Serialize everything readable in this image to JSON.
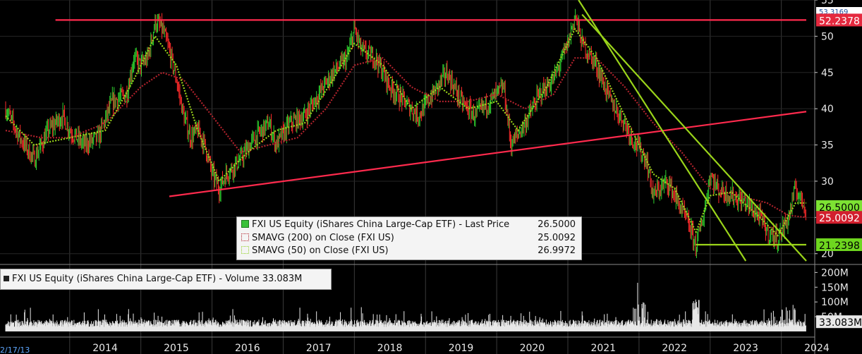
{
  "chart_data": {
    "type": "line",
    "x_ticks": [
      "2014",
      "2015",
      "2016",
      "2017",
      "2018",
      "2019",
      "2020",
      "2021",
      "2022",
      "2023",
      "2024"
    ],
    "start_date_label": "2/17/13",
    "price_axis": {
      "ticks": [
        20,
        25,
        30,
        35,
        40,
        45,
        50,
        55
      ],
      "range": [
        19,
        55
      ]
    },
    "volume_axis": {
      "ticks": [
        "50M",
        "100M",
        "150M",
        "200M"
      ]
    },
    "legend": {
      "price": {
        "label": "FXI US Equity (iShares China Large-Cap ETF) - Last Price",
        "value": "26.5000"
      },
      "sma200": {
        "label": "SMAVG (200)  on Close (FXI US)",
        "value": "25.0092"
      },
      "sma50": {
        "label": "SMAVG (50)  on Close (FXI US)",
        "value": "26.9972"
      },
      "volume": {
        "label": "FXI US Equity (iShares China Large-Cap ETF) - Volume 33.083M"
      }
    },
    "tags": {
      "high": "53.3169",
      "resistance": "52.2378",
      "last": "26.5000",
      "sma200": "25.0092",
      "support": "21.2398",
      "volume": "33.083M"
    },
    "price_series": [
      [
        2013.1,
        40
      ],
      [
        2013.3,
        36
      ],
      [
        2013.5,
        33
      ],
      [
        2013.7,
        37
      ],
      [
        2013.9,
        39
      ],
      [
        2014.0,
        37
      ],
      [
        2014.2,
        35
      ],
      [
        2014.4,
        36
      ],
      [
        2014.6,
        41
      ],
      [
        2014.8,
        42
      ],
      [
        2014.9,
        47
      ],
      [
        2015.0,
        46
      ],
      [
        2015.1,
        47
      ],
      [
        2015.2,
        52
      ],
      [
        2015.3,
        51
      ],
      [
        2015.4,
        48
      ],
      [
        2015.5,
        44
      ],
      [
        2015.6,
        39
      ],
      [
        2015.7,
        36
      ],
      [
        2015.8,
        37
      ],
      [
        2015.9,
        35
      ],
      [
        2016.0,
        31
      ],
      [
        2016.1,
        29
      ],
      [
        2016.2,
        31
      ],
      [
        2016.4,
        33
      ],
      [
        2016.6,
        36
      ],
      [
        2016.8,
        38
      ],
      [
        2016.9,
        35
      ],
      [
        2017.1,
        38
      ],
      [
        2017.3,
        39
      ],
      [
        2017.5,
        42
      ],
      [
        2017.7,
        45
      ],
      [
        2017.9,
        47
      ],
      [
        2018.0,
        51
      ],
      [
        2018.1,
        48
      ],
      [
        2018.3,
        47
      ],
      [
        2018.5,
        43
      ],
      [
        2018.7,
        41
      ],
      [
        2018.9,
        39
      ],
      [
        2019.1,
        42
      ],
      [
        2019.3,
        45
      ],
      [
        2019.5,
        41
      ],
      [
        2019.7,
        39
      ],
      [
        2019.9,
        41
      ],
      [
        2020.1,
        43
      ],
      [
        2020.2,
        35
      ],
      [
        2020.4,
        38
      ],
      [
        2020.6,
        42
      ],
      [
        2020.8,
        44
      ],
      [
        2021.0,
        49
      ],
      [
        2021.1,
        53
      ],
      [
        2021.2,
        49
      ],
      [
        2021.4,
        46
      ],
      [
        2021.6,
        41
      ],
      [
        2021.8,
        38
      ],
      [
        2021.9,
        36
      ],
      [
        2022.1,
        33
      ],
      [
        2022.2,
        28
      ],
      [
        2022.4,
        30
      ],
      [
        2022.5,
        28
      ],
      [
        2022.7,
        24
      ],
      [
        2022.8,
        21
      ],
      [
        2022.9,
        25
      ],
      [
        2023.0,
        31
      ],
      [
        2023.1,
        29
      ],
      [
        2023.3,
        28
      ],
      [
        2023.5,
        27
      ],
      [
        2023.7,
        25
      ],
      [
        2023.8,
        23
      ],
      [
        2023.95,
        22
      ],
      [
        2024.1,
        25
      ],
      [
        2024.2,
        29
      ],
      [
        2024.3,
        27
      ],
      [
        2024.35,
        26.5
      ]
    ],
    "sma200_series": [
      [
        2013.1,
        37
      ],
      [
        2013.6,
        36
      ],
      [
        2014.0,
        36
      ],
      [
        2014.5,
        38
      ],
      [
        2015.0,
        43
      ],
      [
        2015.3,
        45
      ],
      [
        2015.6,
        44
      ],
      [
        2016.0,
        39
      ],
      [
        2016.4,
        34
      ],
      [
        2016.8,
        35
      ],
      [
        2017.2,
        36
      ],
      [
        2017.6,
        40
      ],
      [
        2018.0,
        46
      ],
      [
        2018.4,
        47
      ],
      [
        2018.8,
        43
      ],
      [
        2019.2,
        41
      ],
      [
        2019.6,
        41
      ],
      [
        2020.0,
        42
      ],
      [
        2020.4,
        40
      ],
      [
        2020.8,
        42
      ],
      [
        2021.1,
        47
      ],
      [
        2021.4,
        47
      ],
      [
        2021.8,
        43
      ],
      [
        2022.2,
        38
      ],
      [
        2022.6,
        34
      ],
      [
        2023.0,
        29
      ],
      [
        2023.4,
        28
      ],
      [
        2023.8,
        27
      ],
      [
        2024.1,
        25.3
      ],
      [
        2024.35,
        25.0
      ]
    ],
    "sma50_series": [
      [
        2013.1,
        39
      ],
      [
        2013.5,
        35
      ],
      [
        2014.0,
        36
      ],
      [
        2014.5,
        37
      ],
      [
        2014.9,
        44
      ],
      [
        2015.2,
        50
      ],
      [
        2015.5,
        46
      ],
      [
        2015.8,
        37
      ],
      [
        2016.1,
        30
      ],
      [
        2016.5,
        34
      ],
      [
        2016.9,
        37
      ],
      [
        2017.3,
        38
      ],
      [
        2017.7,
        44
      ],
      [
        2018.0,
        49
      ],
      [
        2018.4,
        46
      ],
      [
        2018.8,
        40
      ],
      [
        2019.2,
        43
      ],
      [
        2019.6,
        40
      ],
      [
        2020.0,
        41
      ],
      [
        2020.3,
        37
      ],
      [
        2020.7,
        43
      ],
      [
        2021.1,
        51
      ],
      [
        2021.4,
        47
      ],
      [
        2021.8,
        39
      ],
      [
        2022.2,
        31
      ],
      [
        2022.5,
        29
      ],
      [
        2022.8,
        23
      ],
      [
        2023.0,
        28
      ],
      [
        2023.3,
        28.5
      ],
      [
        2023.7,
        25
      ],
      [
        2023.95,
        22.5
      ],
      [
        2024.2,
        27
      ],
      [
        2024.35,
        27.0
      ]
    ],
    "trendlines": [
      {
        "name": "resistance",
        "color": "#ff2a4d",
        "points": [
          [
            2013.8,
            52.24
          ],
          [
            2024.35,
            52.24
          ]
        ]
      },
      {
        "name": "rising",
        "color": "#ff2a4d",
        "points": [
          [
            2015.4,
            27.9
          ],
          [
            2024.35,
            39.6
          ]
        ]
      },
      {
        "name": "support",
        "color": "#9ad41a",
        "points": [
          [
            2022.8,
            21.24
          ],
          [
            2024.35,
            21.24
          ]
        ]
      },
      {
        "name": "down-steep",
        "color": "#9ad41a",
        "points": [
          [
            2021.15,
            55
          ],
          [
            2023.5,
            19
          ]
        ]
      },
      {
        "name": "down-shallow",
        "color": "#9ad41a",
        "points": [
          [
            2021.2,
            53
          ],
          [
            2024.35,
            19
          ]
        ]
      }
    ],
    "colors": {
      "background": "#000000",
      "up_candle": "#2fd22f",
      "down_candle": "#ff2b2b",
      "sma200": "#b0222c",
      "sma50": "#9ad41a",
      "high_tag_bg": "#ffffff",
      "resistance_tag": "#e5293f",
      "last_tag": "#7de233",
      "sma200_tag": "#d21f2e",
      "support_tag": "#6ed61f",
      "volume_tag": "#e8e8e8"
    }
  }
}
